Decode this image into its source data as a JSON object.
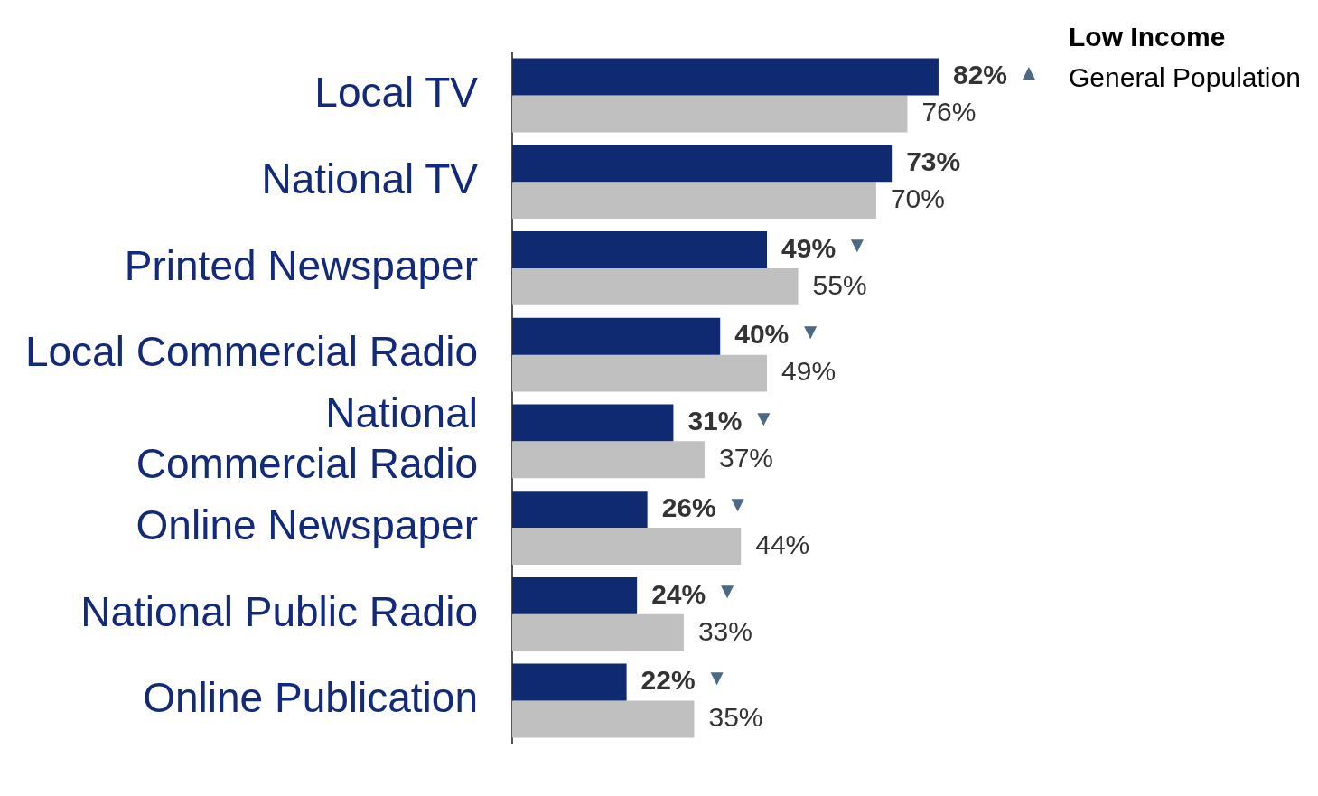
{
  "chart_data": {
    "type": "bar",
    "orientation": "horizontal",
    "categories": [
      "Local TV",
      "National TV",
      "Printed Newspaper",
      "Local Commercial Radio",
      "National Commercial Radio",
      "Online Newspaper",
      "National Public Radio",
      "Online Publication"
    ],
    "series": [
      {
        "name": "Low Income",
        "color": "#0f2a70",
        "values": [
          82,
          73,
          49,
          40,
          31,
          26,
          24,
          22
        ],
        "value_labels": [
          "82% ▲",
          "73%",
          "49% ▼",
          "40% ▼",
          "31% ▼",
          "26% ▼",
          "24% ▼",
          "22% ▼"
        ]
      },
      {
        "name": "General Population",
        "color": "#c0c0c0",
        "values": [
          76,
          70,
          55,
          49,
          37,
          44,
          33,
          35
        ],
        "value_labels": [
          "76%",
          "70%",
          "55%",
          "49%",
          "37%",
          "44%",
          "33%",
          "35%"
        ]
      }
    ],
    "tick_labels": "y",
    "grid": false,
    "legend": "top right"
  }
}
